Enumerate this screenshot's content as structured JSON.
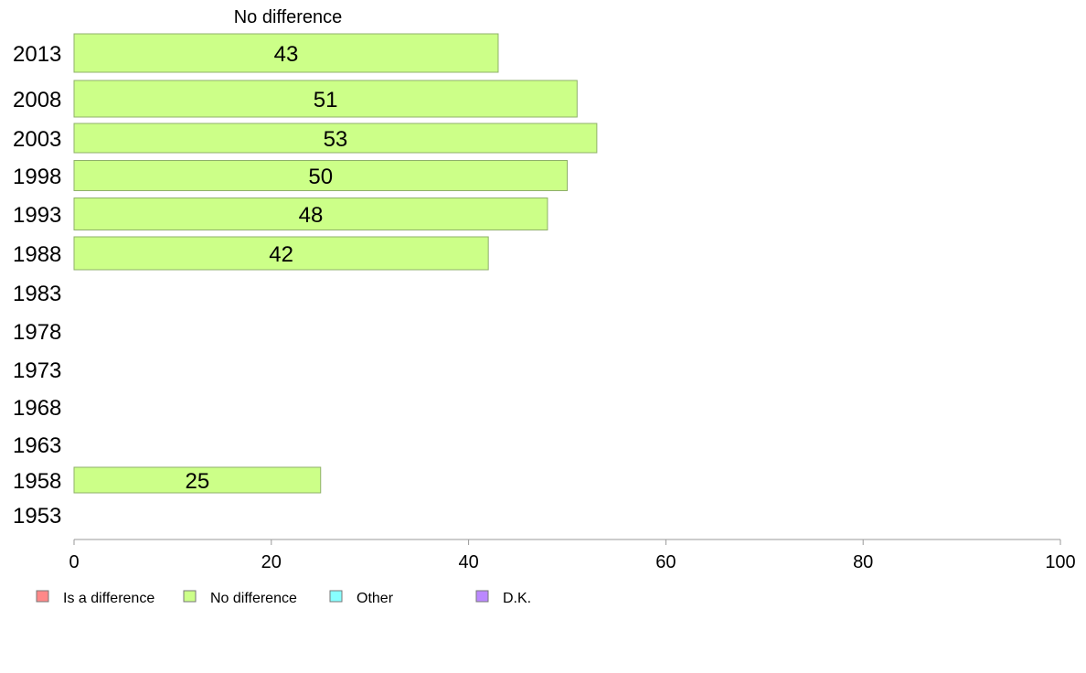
{
  "chart_data": {
    "type": "bar",
    "orientation": "horizontal",
    "title": "",
    "series_title": "No difference",
    "xlabel": "",
    "ylabel": "",
    "xlim": [
      0,
      100
    ],
    "grid": false,
    "x_ticks": [
      0,
      20,
      40,
      60,
      80,
      100
    ],
    "categories": [
      "2013",
      "2008",
      "2003",
      "1998",
      "1993",
      "1988",
      "1983",
      "1978",
      "1973",
      "1968",
      "1963",
      "1958",
      "1953"
    ],
    "series": [
      {
        "name": "No difference",
        "color": "#ccff88",
        "values": [
          43,
          51,
          53,
          50,
          48,
          42,
          null,
          null,
          null,
          null,
          null,
          25,
          null
        ]
      }
    ],
    "legend_position": "bottom-left",
    "legend": [
      {
        "label": "Is a difference",
        "color": "#ff8888"
      },
      {
        "label": "No difference",
        "color": "#ccff88"
      },
      {
        "label": "Other",
        "color": "#88ffff"
      },
      {
        "label": "D.K.",
        "color": "#bb88ff"
      }
    ]
  }
}
